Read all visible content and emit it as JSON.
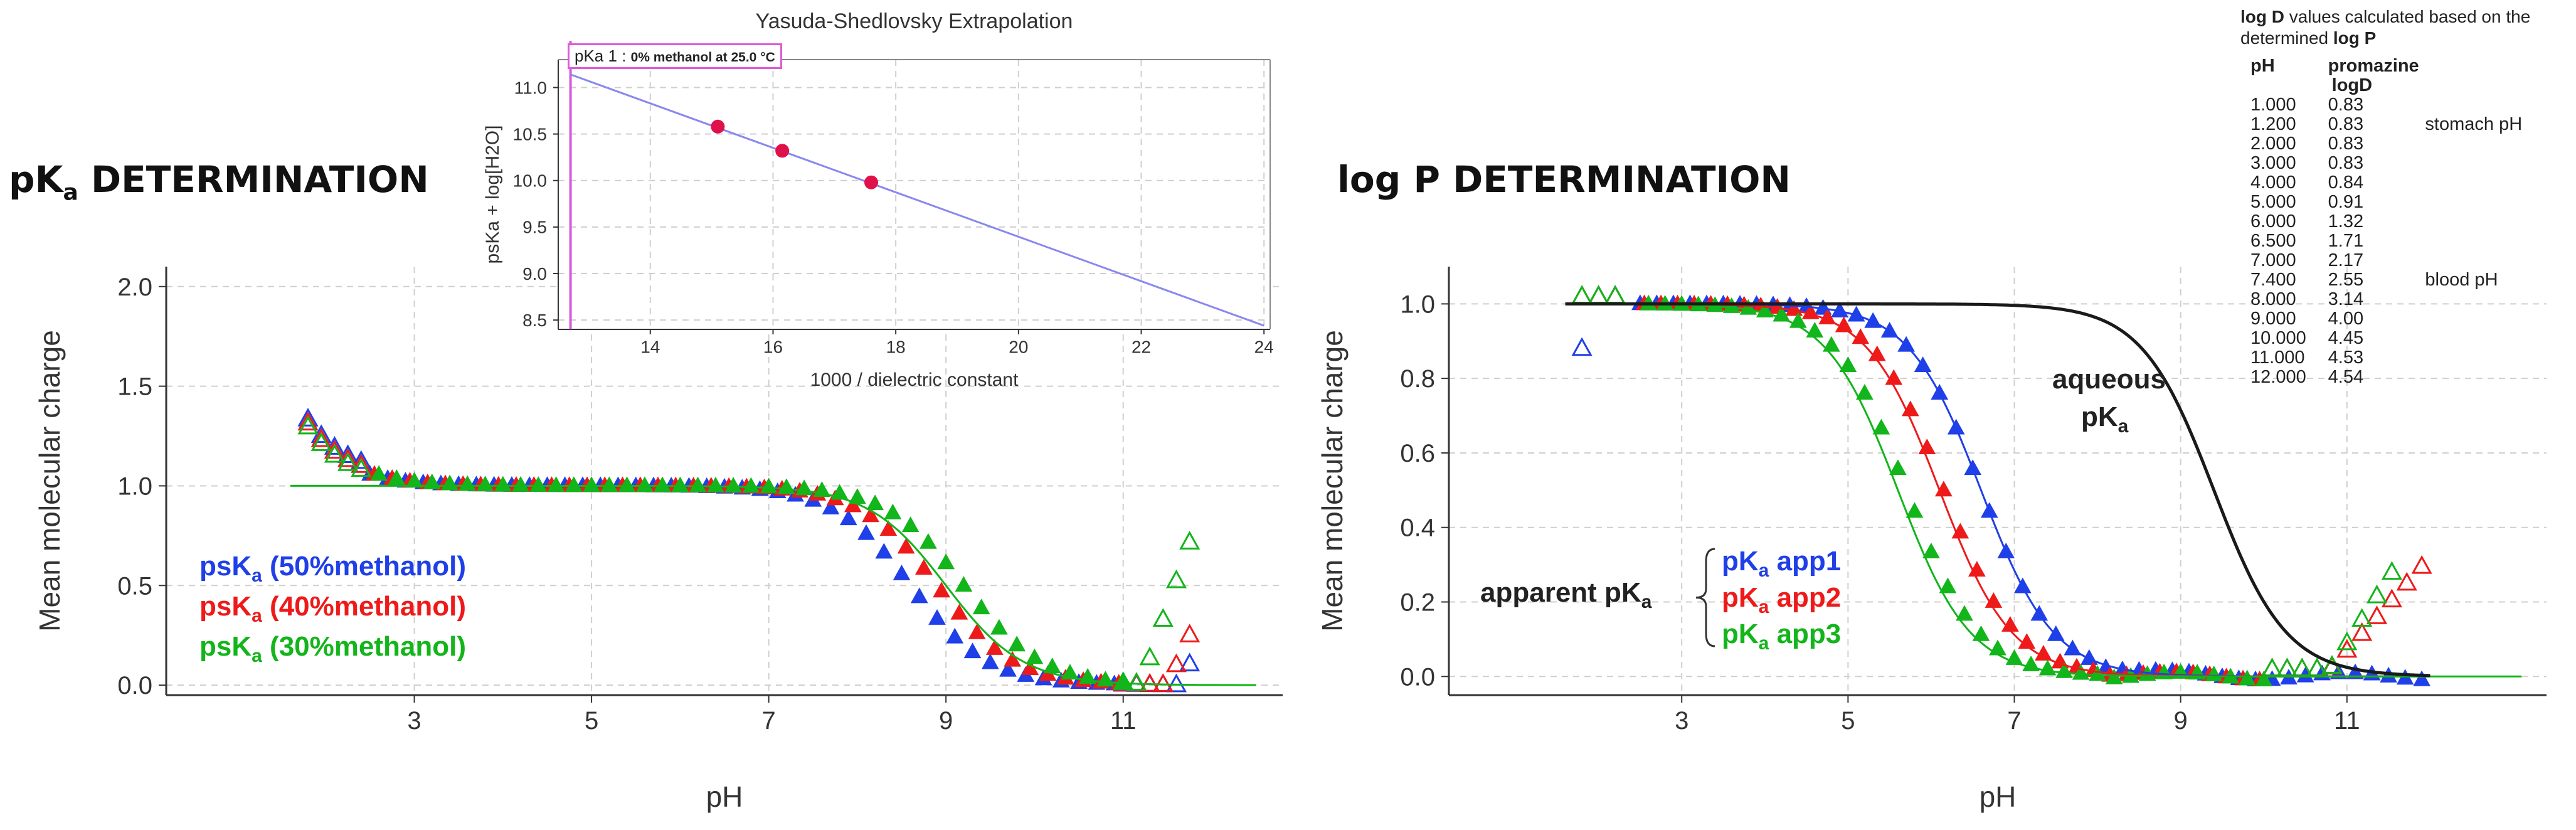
{
  "headings": {
    "pka": {
      "main": "pK",
      "sub": "a",
      "rest": " DETERMINATION"
    },
    "logp": {
      "main": "log P DETERMINATION"
    }
  },
  "colors": {
    "blue": "#1f3fe8",
    "red": "#ee1a1a",
    "green": "#12b51a",
    "inset_line": "#8888ee",
    "inset_point": "#e0104a",
    "inset_marker": "#d85ad8",
    "aqueous_curve": "#1a1a1a",
    "grid": "#cccccc"
  },
  "pka_legend": [
    {
      "pre": "psK",
      "sub": "a",
      "post": " (50%methanol)",
      "color": "#1f3fe8"
    },
    {
      "pre": "psK",
      "sub": "a",
      "post": " (40%methanol)",
      "color": "#ee1a1a"
    },
    {
      "pre": "psK",
      "sub": "a",
      "post": " (30%methanol)",
      "color": "#12b51a"
    }
  ],
  "logp_legend": [
    {
      "pre": "pK",
      "sub": "a",
      "post": " app1",
      "color": "#1f3fe8"
    },
    {
      "pre": "pK",
      "sub": "a",
      "post": " app2",
      "color": "#ee1a1a"
    },
    {
      "pre": "pK",
      "sub": "a",
      "post": " app3",
      "color": "#12b51a"
    }
  ],
  "logp_notes": {
    "apparent": {
      "pre": "apparent pK",
      "sub": "a"
    },
    "aqueous_line1": "aqueous",
    "aqueous_line2": {
      "pre": "pK",
      "sub": "a"
    }
  },
  "inset": {
    "sample_label": "pKa 1 : ",
    "sample_detail": "0% methanol at 25.0 °C"
  },
  "logd_panel": {
    "caption": [
      {
        "t": "log D",
        "b": true
      },
      {
        "t": " values calculated based on the determined ",
        "b": false
      },
      {
        "t": "log P",
        "b": true
      }
    ],
    "col_ph": "pH",
    "col_compound": "promazine",
    "col_logd": "logD",
    "rows": [
      {
        "ph": "1.000",
        "logd": "0.83",
        "note": ""
      },
      {
        "ph": "1.200",
        "logd": "0.83",
        "note": "stomach pH"
      },
      {
        "ph": "2.000",
        "logd": "0.83",
        "note": ""
      },
      {
        "ph": "3.000",
        "logd": "0.83",
        "note": ""
      },
      {
        "ph": "4.000",
        "logd": "0.84",
        "note": ""
      },
      {
        "ph": "5.000",
        "logd": "0.91",
        "note": ""
      },
      {
        "ph": "6.000",
        "logd": "1.32",
        "note": ""
      },
      {
        "ph": "6.500",
        "logd": "1.71",
        "note": ""
      },
      {
        "ph": "7.000",
        "logd": "2.17",
        "note": ""
      },
      {
        "ph": "7.400",
        "logd": "2.55",
        "note": "blood pH"
      },
      {
        "ph": "8.000",
        "logd": "3.14",
        "note": ""
      },
      {
        "ph": "9.000",
        "logd": "4.00",
        "note": ""
      },
      {
        "ph": "10.000",
        "logd": "4.45",
        "note": ""
      },
      {
        "ph": "11.000",
        "logd": "4.53",
        "note": ""
      },
      {
        "ph": "12.000",
        "logd": "4.54",
        "note": ""
      }
    ]
  },
  "chart_data": [
    {
      "id": "pka",
      "type": "scatter",
      "title": "",
      "xlabel": "pH",
      "ylabel": "Mean molecular charge",
      "xlim": [
        0.2,
        12.8
      ],
      "ylim": [
        -0.05,
        2.1
      ],
      "xticks": [
        3,
        5,
        7,
        9,
        11
      ],
      "yticks": [
        0.0,
        0.5,
        1.0,
        1.5,
        2.0
      ],
      "xtick_labels": [
        "3",
        "5",
        "7",
        "9",
        "11"
      ],
      "ytick_labels": [
        "0.0",
        "0.5",
        "1.0",
        "1.5",
        "2.0"
      ],
      "grid": true,
      "marker": "triangle",
      "series": [
        {
          "color": "#1f3fe8",
          "pk": 8.6,
          "filled_x": [
            2.5,
            10.9
          ],
          "open_x": [
            1.8,
            2.4,
            11.0,
            11.8
          ],
          "upturn_x": 11.6
        },
        {
          "color": "#ee1a1a",
          "pk": 8.85,
          "filled_x": [
            2.5,
            10.9
          ],
          "open_x": [
            1.8,
            2.4,
            11.0,
            11.9
          ],
          "upturn_x": 11.5
        },
        {
          "color": "#12b51a",
          "pk": 9.1,
          "filled_x": [
            2.5,
            10.9
          ],
          "open_x": [
            1.8,
            2.4,
            11.0,
            11.9
          ],
          "upturn_x": 11.2
        }
      ],
      "fit_curves": [
        {
          "color": "#12b51a",
          "pk": 9.0,
          "x": [
            1.6,
            12.5
          ]
        }
      ]
    },
    {
      "id": "logp",
      "type": "scatter",
      "title": "",
      "xlabel": "pH",
      "ylabel": "Mean molecular charge",
      "xlim": [
        0.2,
        13.4
      ],
      "ylim": [
        -0.05,
        1.1
      ],
      "xticks": [
        3,
        5,
        7,
        9,
        11
      ],
      "yticks": [
        0.0,
        0.2,
        0.4,
        0.6,
        0.8,
        1.0
      ],
      "xtick_labels": [
        "3",
        "5",
        "7",
        "9",
        "11"
      ],
      "ytick_labels": [
        "0.0",
        "0.2",
        "0.4",
        "0.6",
        "0.8",
        "1.0"
      ],
      "grid": true,
      "marker": "triangle",
      "series": [
        {
          "name": "pKa app1",
          "color": "#1f3fe8",
          "pk": 6.6,
          "filled_x": [
            2.5,
            12.0
          ],
          "open_x": [
            1.8,
            2.4
          ]
        },
        {
          "name": "pKa app2",
          "color": "#ee1a1a",
          "pk": 6.1,
          "filled_x": [
            2.5,
            10.0
          ],
          "open_x": [
            1.8,
            2.4,
            10.1,
            11.9
          ]
        },
        {
          "name": "pKa app3",
          "color": "#12b51a",
          "pk": 5.6,
          "filled_x": [
            2.5,
            10.0
          ],
          "open_x": [
            1.8,
            2.4,
            10.1,
            11.7
          ]
        }
      ],
      "fit_curves": [
        {
          "color": "#1f3fe8",
          "pk": 6.6,
          "x": [
            1.6,
            12.0
          ]
        },
        {
          "color": "#ee1a1a",
          "pk": 6.1,
          "x": [
            1.6,
            11.5
          ]
        },
        {
          "color": "#12b51a",
          "pk": 5.6,
          "x": [
            1.6,
            13.1
          ]
        },
        {
          "color": "#1a1a1a",
          "pk": 9.4,
          "x": [
            1.6,
            12.0
          ],
          "name": "aqueous pKa"
        }
      ]
    },
    {
      "id": "inset",
      "type": "line",
      "title": "Yasuda-Shedlovsky Extrapolation",
      "xlabel": "1000 / dielectric constant",
      "ylabel": "psKa + log[H2O]",
      "xlim": [
        12.5,
        24.1
      ],
      "ylim": [
        8.4,
        11.3
      ],
      "xticks": [
        14,
        16,
        18,
        20,
        22,
        24
      ],
      "yticks": [
        8.5,
        9.0,
        9.5,
        10.0,
        10.5,
        11.0
      ],
      "xtick_labels": [
        "14",
        "16",
        "18",
        "20",
        "22",
        "24"
      ],
      "ytick_labels": [
        "8.5",
        "9.0",
        "9.5",
        "10.0",
        "10.5",
        "11.0"
      ],
      "grid": true,
      "line": {
        "x": [
          12.7,
          24.0
        ],
        "y": [
          11.14,
          8.44
        ]
      },
      "points": {
        "x": [
          15.1,
          16.15,
          17.6
        ],
        "y": [
          10.58,
          10.32,
          9.98
        ]
      },
      "marker_line_x": 12.7
    }
  ]
}
